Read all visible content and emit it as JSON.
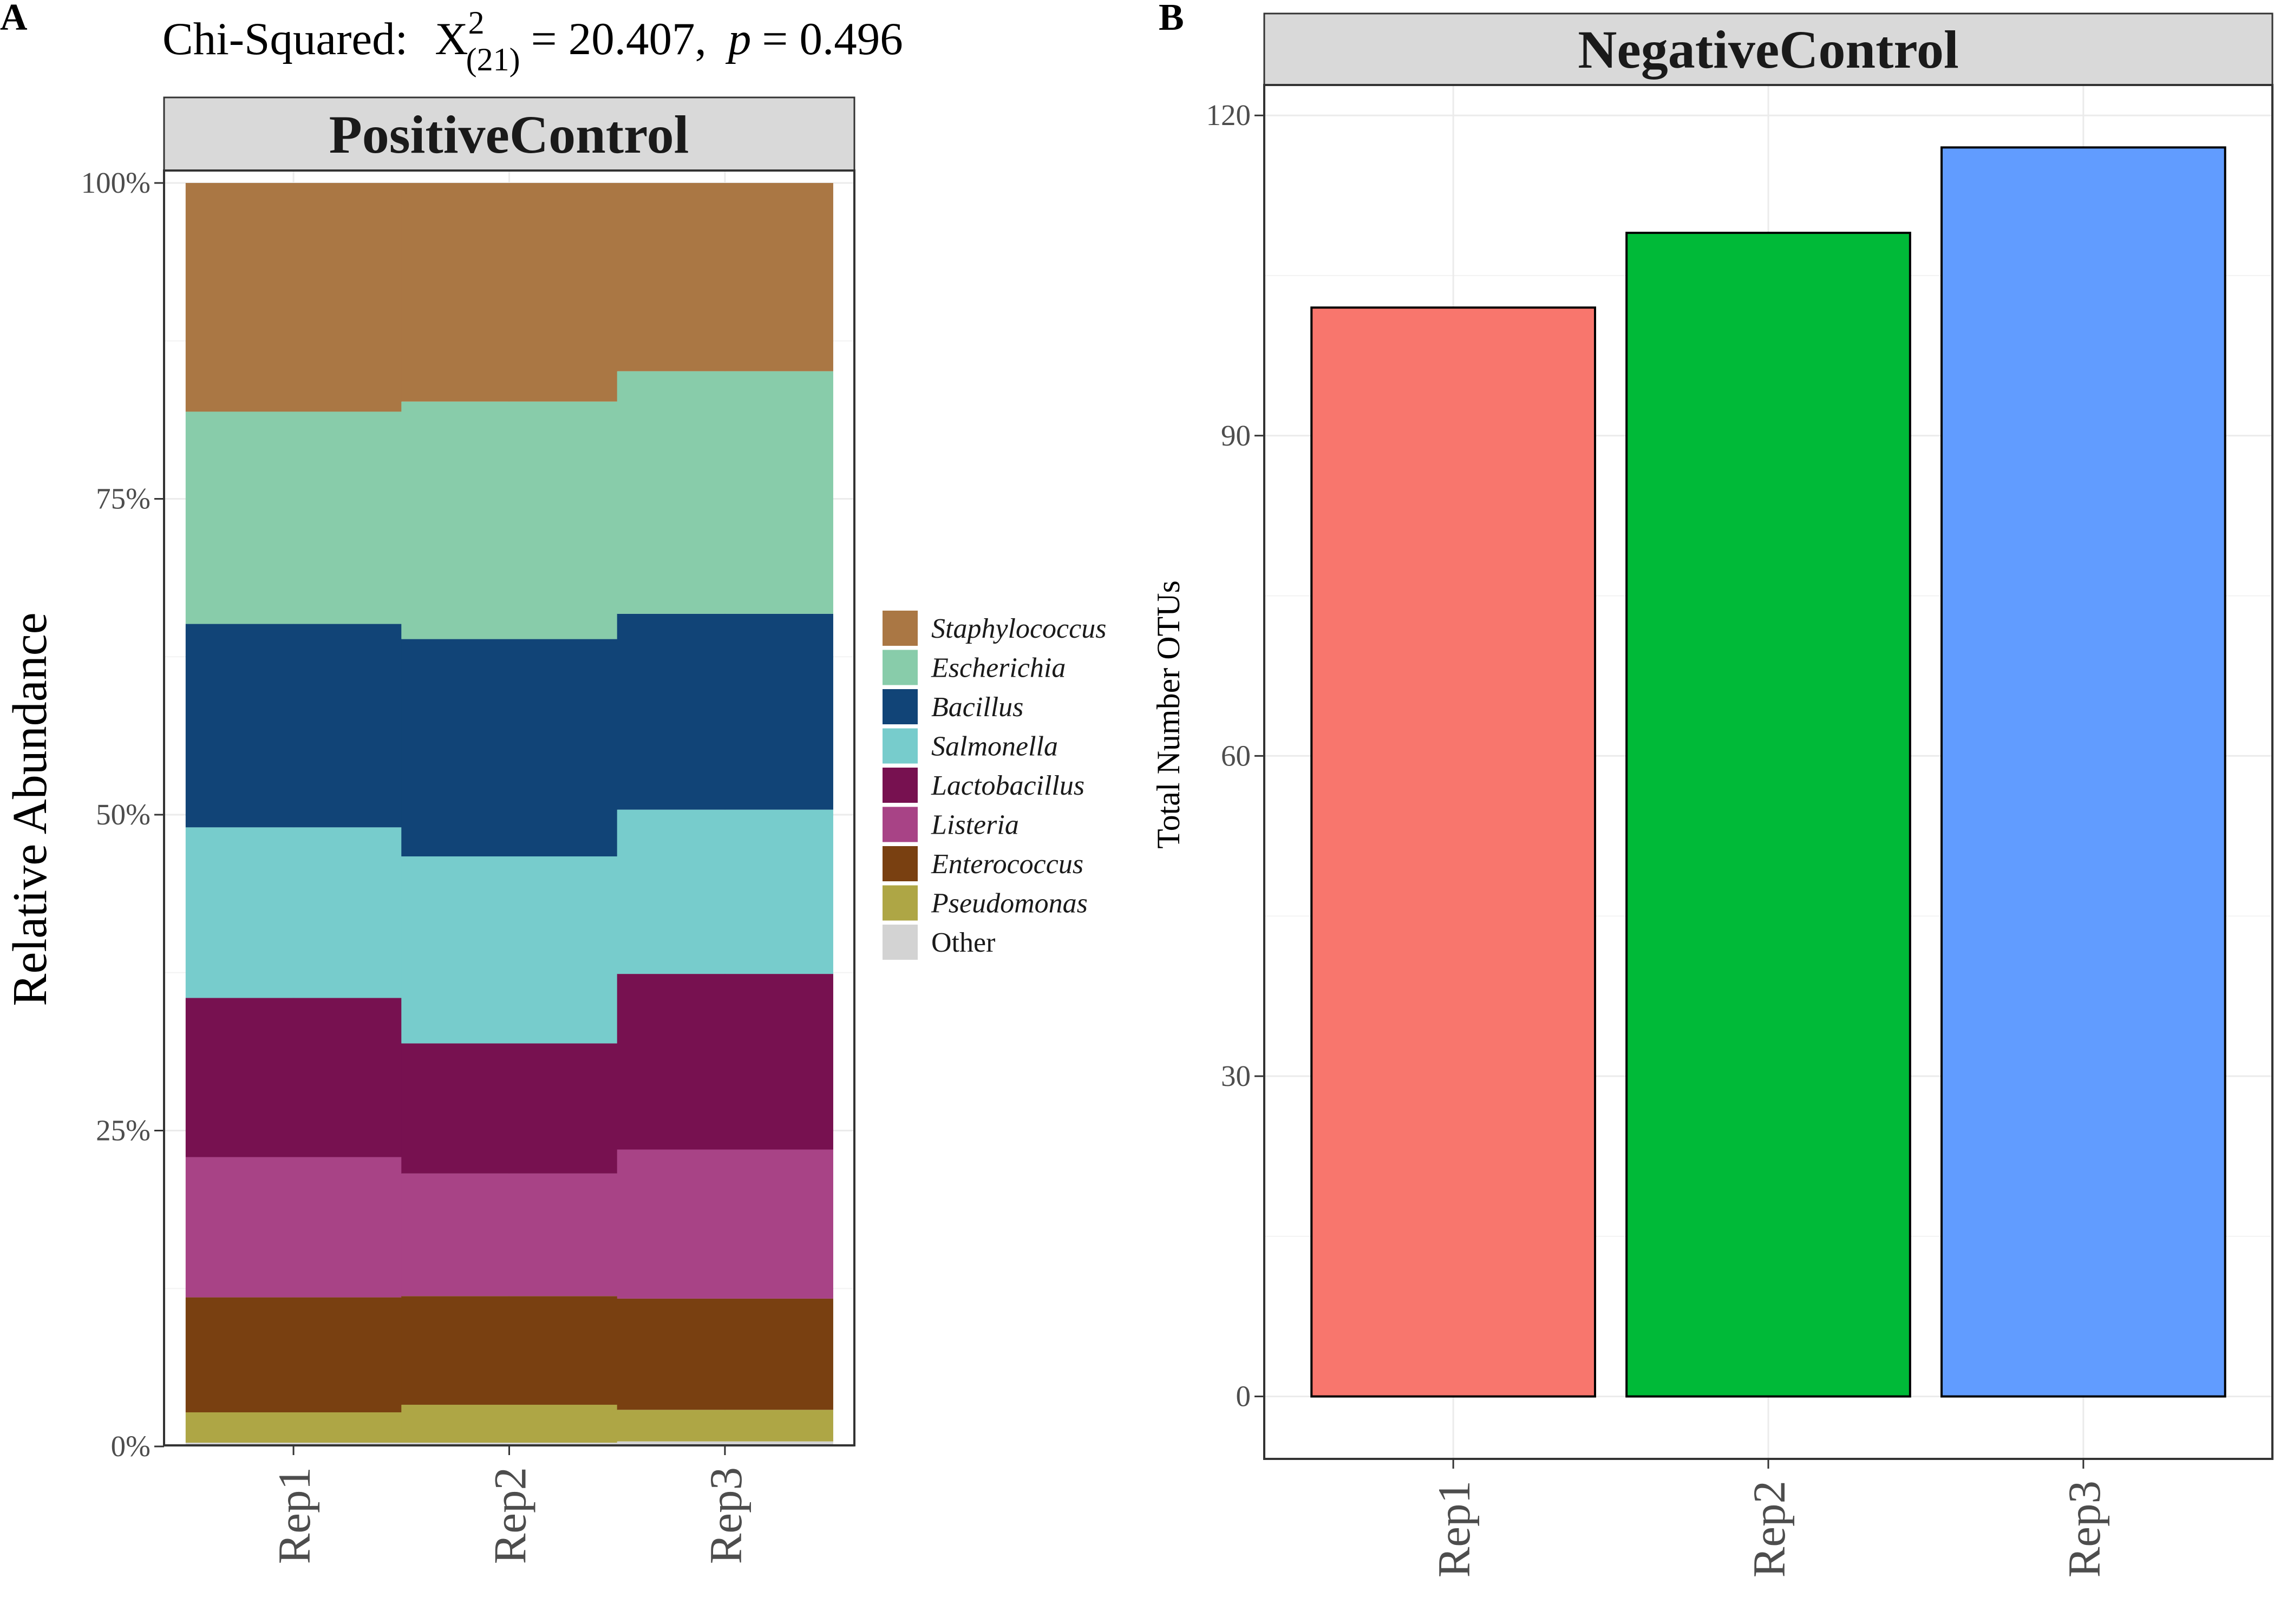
{
  "panel_labels": {
    "a": "A",
    "b": "B"
  },
  "chi_square": {
    "prefix": "Chi-Squared:",
    "symbol": "X",
    "sup": "2",
    "sub": "(21)",
    "value": "= 20.407,",
    "p_symbol": "p",
    "p_value": "= 0.496"
  },
  "chart_data": [
    {
      "type": "bar",
      "stacked": true,
      "strip_title": "PositiveControl",
      "ylabel": "Relative Abundance",
      "ylim": [
        0,
        1
      ],
      "y_ticks": [
        {
          "value": 0,
          "label": "0%"
        },
        {
          "value": 0.25,
          "label": "25%"
        },
        {
          "value": 0.5,
          "label": "50%"
        },
        {
          "value": 0.75,
          "label": "75%"
        },
        {
          "value": 1,
          "label": "100%"
        }
      ],
      "categories": [
        "Rep1",
        "Rep2",
        "Rep3"
      ],
      "legend_position": "right",
      "series": [
        {
          "name": "Other",
          "color": "#d3d3d3",
          "values": [
            0.003,
            0.003,
            0.004
          ]
        },
        {
          "name": "Pseudomonas",
          "color": "#aea645",
          "values": [
            0.024,
            0.03,
            0.025
          ]
        },
        {
          "name": "Enterococcus",
          "color": "#794011",
          "values": [
            0.091,
            0.086,
            0.088
          ]
        },
        {
          "name": "Listeria",
          "color": "#a84386",
          "values": [
            0.111,
            0.097,
            0.118
          ]
        },
        {
          "name": "Lactobacillus",
          "color": "#771150",
          "values": [
            0.126,
            0.103,
            0.139
          ]
        },
        {
          "name": "Salmonella",
          "color": "#77cccc",
          "values": [
            0.135,
            0.148,
            0.13
          ]
        },
        {
          "name": "Bacillus",
          "color": "#114477",
          "values": [
            0.161,
            0.172,
            0.155
          ]
        },
        {
          "name": "Escherichia",
          "color": "#88ccaa",
          "values": [
            0.168,
            0.188,
            0.192
          ]
        },
        {
          "name": "Staphylococcus",
          "color": "#aa7744",
          "values": [
            0.181,
            0.173,
            0.149
          ]
        }
      ],
      "legend_order": [
        "Staphylococcus",
        "Escherichia",
        "Bacillus",
        "Salmonella",
        "Lactobacillus",
        "Listeria",
        "Enterococcus",
        "Pseudomonas",
        "Other"
      ],
      "legend_italic": [
        true,
        true,
        true,
        true,
        true,
        true,
        true,
        true,
        false
      ]
    },
    {
      "type": "bar",
      "strip_title": "NegativeControl",
      "ylabel": "Total Number OTUs",
      "ylim": [
        -5.85,
        122.85
      ],
      "y_ticks": [
        0,
        30,
        60,
        90,
        120
      ],
      "categories": [
        "Rep1",
        "Rep2",
        "Rep3"
      ],
      "values": [
        102,
        109,
        117
      ],
      "colors": [
        "#f8766d",
        "#00ba38",
        "#619cff"
      ]
    }
  ]
}
